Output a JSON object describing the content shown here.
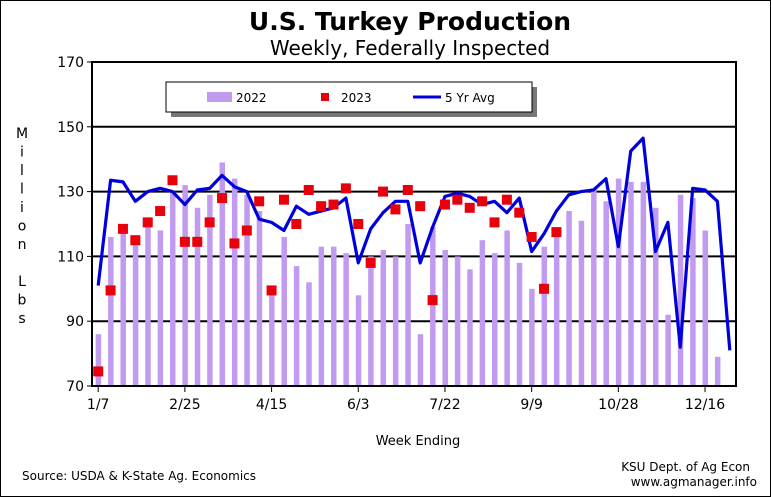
{
  "chart_data": {
    "type": "bar",
    "title": "U.S. Turkey Production",
    "subtitle": "Weekly, Federally Inspected",
    "xlabel": "Week Ending",
    "ylabel": "Million Lbs",
    "ylim": [
      70,
      170
    ],
    "yticks": [
      70,
      90,
      110,
      130,
      150,
      170
    ],
    "xtick_labels": [
      "1/7",
      "2/25",
      "4/15",
      "6/3",
      "7/22",
      "9/9",
      "10/28",
      "12/16"
    ],
    "xtick_weeks": [
      1,
      8,
      15,
      22,
      29,
      36,
      43,
      50
    ],
    "grid": "horizontal major lines",
    "legend_position": "top",
    "series": [
      {
        "name": "2022",
        "kind": "bar",
        "color": "#c19bf0",
        "values": [
          86,
          116,
          118,
          115,
          121,
          118,
          130,
          132,
          125,
          129,
          139,
          134,
          129,
          124,
          101,
          116,
          107,
          102,
          113,
          113,
          111,
          98,
          110,
          112,
          110,
          120,
          86,
          119,
          112,
          110,
          106,
          115,
          111,
          118,
          108,
          100,
          113,
          116,
          124,
          121,
          131,
          127,
          134,
          133,
          133,
          125,
          92,
          129,
          128,
          118,
          79
        ]
      },
      {
        "name": "2023",
        "kind": "scatter",
        "color": "#e8000b",
        "values": [
          74.5,
          99.5,
          118.5,
          115,
          120.5,
          124,
          133.5,
          114.5,
          114.5,
          120.5,
          128,
          114,
          118,
          127,
          99.5,
          127.5,
          120,
          130.5,
          125.5,
          126,
          131,
          120,
          108,
          130,
          124.5,
          130.5,
          125.5,
          96.5,
          126,
          127.5,
          125,
          127,
          120.5,
          127.5,
          123.5,
          116,
          100,
          117.5
        ]
      },
      {
        "name": "5 Yr Avg",
        "kind": "line",
        "color": "#0000dd",
        "values": [
          101,
          133.5,
          133,
          127,
          130,
          131,
          130,
          126,
          130.5,
          131,
          135,
          131.5,
          130,
          121.5,
          120.5,
          118,
          125.5,
          123,
          124,
          125,
          128,
          108,
          118.5,
          123.5,
          127,
          127,
          108,
          119,
          128.5,
          129.5,
          128.5,
          126,
          127,
          123.5,
          128,
          111.5,
          117,
          124,
          129,
          130,
          130.5,
          134,
          113,
          142.5,
          146.5,
          111.5,
          120.5,
          82,
          131,
          130.5,
          127,
          81
        ]
      }
    ]
  },
  "source": "Source:  USDA & K-State Ag. Economics",
  "credit_line1": "KSU Dept. of Ag Econ",
  "credit_line2": "www.agmanager.info",
  "ylabel_letters": [
    "M",
    "i",
    "l",
    "l",
    "i",
    "o",
    "n",
    "",
    "L",
    "b",
    "s"
  ]
}
